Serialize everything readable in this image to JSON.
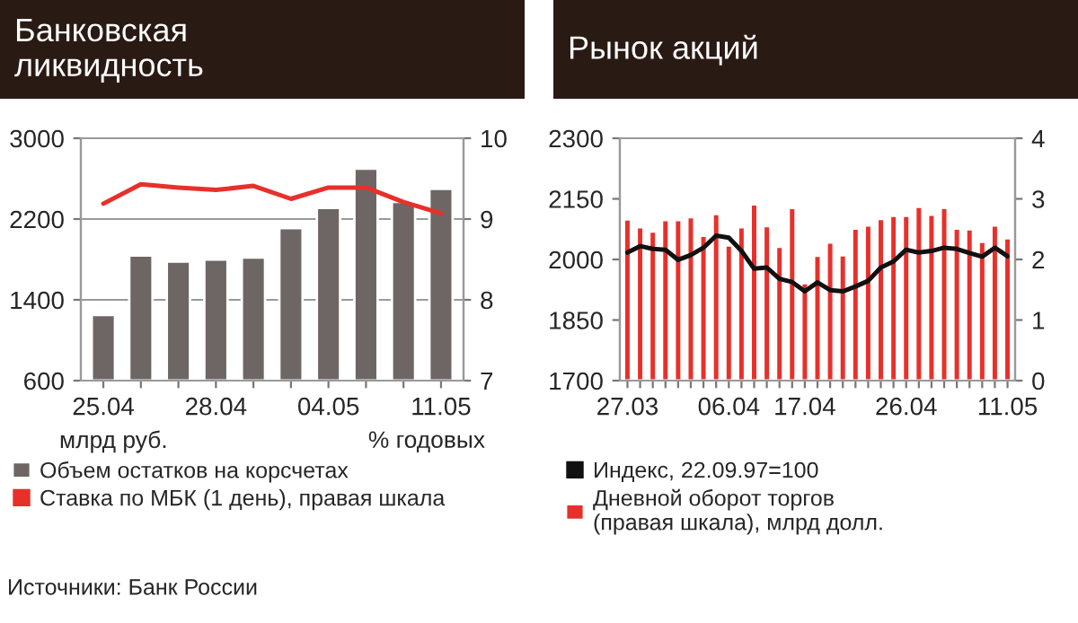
{
  "chart_data": [
    {
      "type": "bar",
      "title": "Банковская\nликвидность",
      "categories": [
        "25.04",
        null,
        null,
        "28.04",
        null,
        null,
        "04.05",
        null,
        null,
        "11.05"
      ],
      "series": [
        {
          "name": "Объем остатков на корсчетах",
          "color": "#6d6665",
          "values": [
            1250,
            1840,
            1780,
            1800,
            1820,
            2110,
            2310,
            2700,
            2370,
            2500
          ]
        },
        {
          "name": "Ставка по МБК (1 день), правая шкала",
          "type": "line",
          "axis": "y2",
          "color": "#e8302b",
          "values": [
            9.19,
            9.43,
            9.39,
            9.36,
            9.41,
            9.25,
            9.39,
            9.39,
            9.21,
            9.07
          ]
        }
      ],
      "ylim": [
        600,
        3000
      ],
      "yticks": [
        600,
        1400,
        2200,
        3000
      ],
      "y2lim": [
        7,
        10
      ],
      "y2ticks": [
        7,
        8,
        9,
        10
      ],
      "grid": "y",
      "legend": "bottom",
      "annotations": [
        "млрд руб.",
        "% годовых",
        "Источники: Банк России"
      ]
    },
    {
      "type": "bar",
      "title": "Рынок акций",
      "categories": [
        "27.03",
        null,
        null,
        null,
        null,
        null,
        null,
        null,
        "06.04",
        null,
        null,
        null,
        null,
        null,
        "17.04",
        null,
        null,
        null,
        null,
        null,
        null,
        null,
        "26.04",
        null,
        null,
        null,
        null,
        null,
        null,
        null,
        "11.05"
      ],
      "series": [
        {
          "name": "Индекс, 22.09.97=100",
          "type": "line",
          "color": "#111111",
          "values": [
            2017,
            2033,
            2026,
            2024,
            1999,
            2011,
            2029,
            2059,
            2054,
            2021,
            1977,
            1980,
            1952,
            1944,
            1921,
            1943,
            1924,
            1921,
            1933,
            1947,
            1980,
            1995,
            2024,
            2017,
            2021,
            2029,
            2026,
            2016,
            2007,
            2029,
            2008
          ]
        },
        {
          "name": "Дневной оборот торгов\n(правая шкала), млрд долл.",
          "axis": "y2",
          "color": "#e8302b",
          "values": [
            2.66,
            2.53,
            2.46,
            2.65,
            2.65,
            2.7,
            2.39,
            2.75,
            2.23,
            2.53,
            2.91,
            2.55,
            2.21,
            2.85,
            1.61,
            2.06,
            2.28,
            2.07,
            2.51,
            2.56,
            2.67,
            2.72,
            2.72,
            2.87,
            2.74,
            2.85,
            2.51,
            2.5,
            2.29,
            2.56,
            2.35
          ]
        }
      ],
      "ylim": [
        1700,
        2300
      ],
      "yticks": [
        1700,
        1850,
        2000,
        2150,
        2300
      ],
      "y2lim": [
        0,
        4
      ],
      "y2ticks": [
        0,
        1,
        2,
        3,
        4
      ],
      "legend": "bottom"
    }
  ]
}
